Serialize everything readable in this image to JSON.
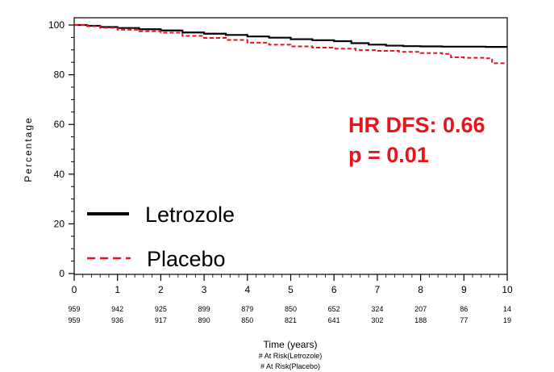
{
  "chart_data": {
    "type": "line",
    "xlabel": "Time (years)",
    "ylabel": "Percentage",
    "xlim": [
      0,
      10
    ],
    "ylim": [
      0,
      100
    ],
    "x_ticks": [
      0,
      1,
      2,
      3,
      4,
      5,
      6,
      7,
      8,
      9,
      10
    ],
    "y_ticks": [
      0,
      20,
      40,
      60,
      80,
      100
    ],
    "legend_placement": "bottom-left",
    "grid": false,
    "annotations": [
      "HR DFS: 0.66",
      "p = 0.01"
    ],
    "annotation_color": "#e8141b",
    "series": [
      {
        "name": "Letrozole",
        "style": "solid",
        "color": "#000000",
        "points": [
          [
            0,
            100
          ],
          [
            0.3,
            99.7
          ],
          [
            0.6,
            99.2
          ],
          [
            1,
            98.8
          ],
          [
            1.5,
            98.3
          ],
          [
            2,
            97.8
          ],
          [
            2.5,
            97.0
          ],
          [
            3,
            96.5
          ],
          [
            3.5,
            96.0
          ],
          [
            4,
            95.4
          ],
          [
            4.5,
            94.9
          ],
          [
            5,
            94.3
          ],
          [
            5.5,
            93.9
          ],
          [
            6,
            93.5
          ],
          [
            6.4,
            92.7
          ],
          [
            6.8,
            92.1
          ],
          [
            7.2,
            91.7
          ],
          [
            7.6,
            91.5
          ],
          [
            8,
            91.4
          ],
          [
            8.5,
            91.3
          ],
          [
            9,
            91.3
          ],
          [
            9.5,
            91.2
          ],
          [
            10,
            91.2
          ]
        ]
      },
      {
        "name": "Placebo",
        "style": "dashed",
        "color": "#e8141b",
        "points": [
          [
            0,
            100
          ],
          [
            0.3,
            99.5
          ],
          [
            0.6,
            98.9
          ],
          [
            1,
            98.1
          ],
          [
            1.5,
            97.5
          ],
          [
            2,
            96.9
          ],
          [
            2.5,
            95.6
          ],
          [
            3,
            94.8
          ],
          [
            3.5,
            94.0
          ],
          [
            4,
            92.9
          ],
          [
            4.5,
            92.1
          ],
          [
            5,
            91.4
          ],
          [
            5.5,
            90.9
          ],
          [
            6,
            90.5
          ],
          [
            6.5,
            89.9
          ],
          [
            7,
            89.6
          ],
          [
            7.5,
            89.2
          ],
          [
            8,
            88.7
          ],
          [
            8.5,
            88.4
          ],
          [
            8.7,
            87.0
          ],
          [
            9,
            86.8
          ],
          [
            9.5,
            86.6
          ],
          [
            9.65,
            84.6
          ],
          [
            10,
            84.6
          ]
        ]
      }
    ],
    "at_risk": {
      "labels": [
        "# At Risk(Letrozole)",
        "# At Risk(Placebo)"
      ],
      "letrozole": [
        "959",
        "942",
        "925",
        "899",
        "879",
        "850",
        "652",
        "324",
        "207",
        "86",
        "14"
      ],
      "placebo": [
        "959",
        "936",
        "917",
        "890",
        "850",
        "821",
        "641",
        "302",
        "188",
        "77",
        "19"
      ]
    }
  }
}
